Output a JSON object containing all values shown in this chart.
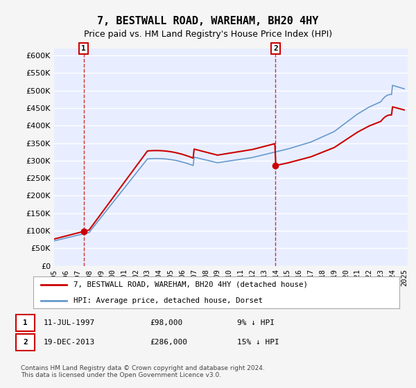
{
  "title": "7, BESTWALL ROAD, WAREHAM, BH20 4HY",
  "subtitle": "Price paid vs. HM Land Registry's House Price Index (HPI)",
  "background_color": "#f5f5f5",
  "plot_bg_color": "#e8eeff",
  "grid_color": "#ffffff",
  "hpi_color": "#6699cc",
  "price_color": "#cc0000",
  "ylim": [
    0,
    620000
  ],
  "yticks": [
    0,
    50000,
    100000,
    150000,
    200000,
    250000,
    300000,
    350000,
    400000,
    450000,
    500000,
    550000,
    600000
  ],
  "sale1_year": 1997.53,
  "sale1_price": 98000,
  "sale2_year": 2013.97,
  "sale2_price": 286000,
  "legend_label1": "7, BESTWALL ROAD, WAREHAM, BH20 4HY (detached house)",
  "legend_label2": "HPI: Average price, detached house, Dorset",
  "footer": "Contains HM Land Registry data © Crown copyright and database right 2024.\nThis data is licensed under the Open Government Licence v3.0.",
  "xticks": [
    1995,
    1996,
    1997,
    1998,
    1999,
    2000,
    2001,
    2002,
    2003,
    2004,
    2005,
    2006,
    2007,
    2008,
    2009,
    2010,
    2011,
    2012,
    2013,
    2014,
    2015,
    2016,
    2017,
    2018,
    2019,
    2020,
    2021,
    2022,
    2023,
    2024,
    2025
  ]
}
